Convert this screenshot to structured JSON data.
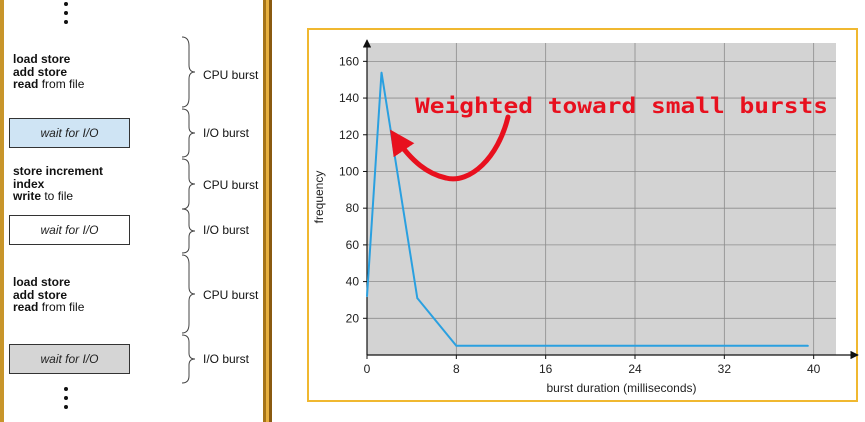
{
  "diagram": {
    "blocks": [
      {
        "kind": "cpu",
        "lines": [
          {
            "bold": "load store",
            "rest": ""
          },
          {
            "bold": "add store",
            "rest": ""
          },
          {
            "bold": "read",
            "rest": " from file"
          }
        ],
        "burst_label": "CPU burst"
      },
      {
        "kind": "io",
        "text": "wait for I/O",
        "burst_label": "I/O burst"
      },
      {
        "kind": "cpu",
        "lines": [
          {
            "bold": "store increment",
            "rest": ""
          },
          {
            "bold": "index",
            "rest": ""
          },
          {
            "bold": "write",
            "rest": " to file"
          }
        ],
        "burst_label": "CPU burst"
      },
      {
        "kind": "io",
        "text": "wait for I/O",
        "burst_label": "I/O burst"
      },
      {
        "kind": "cpu",
        "lines": [
          {
            "bold": "load store",
            "rest": ""
          },
          {
            "bold": "add store",
            "rest": ""
          },
          {
            "bold": "read",
            "rest": " from file"
          }
        ],
        "burst_label": "CPU burst"
      },
      {
        "kind": "io",
        "text": "wait for I/O",
        "burst_label": "I/O burst"
      }
    ],
    "colors": {
      "io_box_1": "#cfe4f4",
      "io_box_2": "#ffffff",
      "io_box_3": "#d5d5d5",
      "frame": "#c8952a"
    }
  },
  "chart_data": {
    "type": "line",
    "xlabel": "burst duration (milliseconds)",
    "ylabel": "frequency",
    "x_ticks": [
      0,
      8,
      16,
      24,
      32,
      40
    ],
    "y_ticks": [
      20,
      40,
      60,
      80,
      100,
      120,
      140,
      160
    ],
    "xlim": [
      0,
      42
    ],
    "ylim": [
      0,
      170
    ],
    "grid": true,
    "series": [
      {
        "x": [
          0,
          1.3,
          4.5,
          8,
          39.5
        ],
        "y": [
          32,
          154,
          31,
          5,
          5
        ],
        "color": "#2aa0e0"
      }
    ],
    "annotation": {
      "text": "Weighted toward small bursts",
      "color": "#e8101e",
      "points_to": {
        "x": 2.2,
        "y": 120
      }
    },
    "colors": {
      "plot_background": "#d3d3d3",
      "frame_border": "#f0b830"
    }
  }
}
